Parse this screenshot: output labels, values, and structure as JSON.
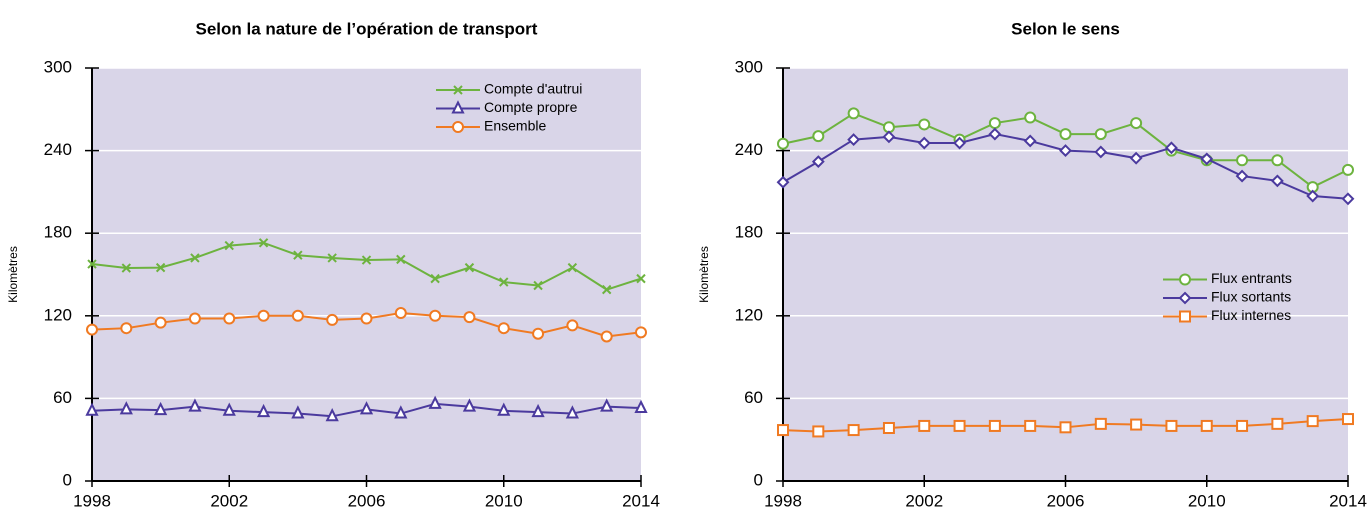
{
  "chart_data": [
    {
      "type": "line",
      "title": "Selon la nature de l’opération de transport",
      "y_label": "Kilomètres",
      "x": [
        1998,
        1999,
        2000,
        2001,
        2002,
        2003,
        2004,
        2005,
        2006,
        2007,
        2008,
        2009,
        2010,
        2011,
        2012,
        2013,
        2014
      ],
      "xlim": [
        1998,
        2014
      ],
      "xticks": [
        1998,
        2002,
        2006,
        2010,
        2014
      ],
      "ylim": [
        0,
        300
      ],
      "yticks": [
        0,
        60,
        120,
        180,
        240,
        300
      ],
      "grid": true,
      "legend": "upper right",
      "background": "#d9d5e8",
      "series": [
        {
          "name": "Compte d'autrui",
          "color": "#6db33f",
          "marker": "x",
          "values": [
            157.6,
            154.7,
            155,
            162,
            171,
            173,
            164,
            162,
            160.5,
            161,
            147,
            155,
            144.5,
            142,
            155,
            139,
            147
          ]
        },
        {
          "name": "Compte propre",
          "color": "#4b3a9e",
          "marker": "triangle",
          "values": [
            51,
            52,
            51.5,
            54,
            51,
            50,
            49,
            47,
            52,
            49,
            56,
            54,
            51,
            50,
            49,
            54,
            53
          ]
        },
        {
          "name": "Ensemble",
          "color": "#f07a22",
          "marker": "circle",
          "values": [
            110,
            111,
            115,
            118,
            118,
            120,
            120,
            117,
            118,
            122,
            120,
            119,
            111,
            107,
            113,
            105,
            108
          ]
        }
      ]
    },
    {
      "type": "line",
      "title": "Selon le sens",
      "y_label": "Kilomètres",
      "x": [
        1998,
        1999,
        2000,
        2001,
        2002,
        2003,
        2004,
        2005,
        2006,
        2007,
        2008,
        2009,
        2010,
        2011,
        2012,
        2013,
        2014
      ],
      "xlim": [
        1998,
        2014
      ],
      "xticks": [
        1998,
        2002,
        2006,
        2010,
        2014
      ],
      "ylim": [
        0,
        300
      ],
      "yticks": [
        0,
        60,
        120,
        180,
        240,
        300
      ],
      "grid": true,
      "legend": "center right",
      "background": "#d9d5e8",
      "series": [
        {
          "name": "Flux entrants",
          "color": "#6db33f",
          "marker": "circle",
          "values": [
            245,
            250.5,
            267,
            257,
            259,
            248,
            260,
            264,
            252,
            252,
            260,
            240,
            233,
            233,
            233,
            213.5,
            226
          ]
        },
        {
          "name": "Flux sortants",
          "color": "#4b3a9e",
          "marker": "diamond",
          "values": [
            217,
            232,
            248,
            250,
            245.5,
            245.5,
            252,
            247,
            240,
            239,
            234.5,
            242,
            234,
            221.5,
            218,
            207,
            205
          ]
        },
        {
          "name": "Flux internes",
          "color": "#f07a22",
          "marker": "square",
          "values": [
            37,
            36,
            37,
            38.5,
            40,
            40,
            40,
            40,
            39,
            41.5,
            41,
            40,
            40,
            40,
            41.5,
            43.5,
            45
          ]
        }
      ]
    }
  ]
}
